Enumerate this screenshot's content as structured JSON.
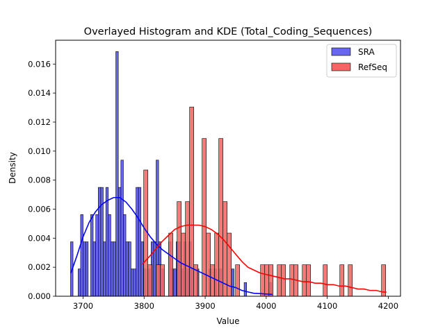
{
  "chart_data": {
    "type": "histogram",
    "title": "Overlayed Histogram and KDE (Total_Coding_Sequences)",
    "xlabel": "Value",
    "ylabel": "Density",
    "xlim": [
      3655,
      4220
    ],
    "ylim": [
      0,
      0.01764
    ],
    "grid": false,
    "legend_position": "top-right",
    "x_ticks": [
      3700,
      3800,
      3900,
      4000,
      4100,
      4200
    ],
    "y_ticks": [
      0.0,
      0.002,
      0.004,
      0.006,
      0.008,
      0.01,
      0.012,
      0.014,
      0.016
    ],
    "x_tick_labels": [
      "3700",
      "3800",
      "3900",
      "4000",
      "4100",
      "4200"
    ],
    "y_tick_labels": [
      "0.000",
      "0.002",
      "0.004",
      "0.006",
      "0.008",
      "0.010",
      "0.012",
      "0.014",
      "0.016"
    ],
    "series": [
      {
        "name": "SRA",
        "color": "#0000ff",
        "bar_color": "#6666ee",
        "bin_width": 4.12,
        "bins": [
          [
            3679.4,
            0.00375
          ],
          [
            3691.8,
            0.00188
          ],
          [
            3695.9,
            0.00563
          ],
          [
            3700.0,
            0.00375
          ],
          [
            3704.2,
            0.00375
          ],
          [
            3712.4,
            0.00563
          ],
          [
            3716.5,
            0.00375
          ],
          [
            3720.7,
            0.00563
          ],
          [
            3724.8,
            0.0075
          ],
          [
            3728.9,
            0.0075
          ],
          [
            3733.0,
            0.00375
          ],
          [
            3737.2,
            0.0075
          ],
          [
            3741.3,
            0.00563
          ],
          [
            3745.4,
            0.00375
          ],
          [
            3749.5,
            0.00375
          ],
          [
            3753.6,
            0.01686
          ],
          [
            3757.8,
            0.0075
          ],
          [
            3761.9,
            0.00938
          ],
          [
            3766.0,
            0.00563
          ],
          [
            3770.1,
            0.00375
          ],
          [
            3774.3,
            0.00375
          ],
          [
            3778.4,
            0.00188
          ],
          [
            3782.5,
            0.00188
          ],
          [
            3786.6,
            0.0075
          ],
          [
            3790.7,
            0.0075
          ],
          [
            3794.9,
            0.00375
          ],
          [
            3799.0,
            0.00188
          ],
          [
            3807.2,
            0.00188
          ],
          [
            3811.4,
            0.00375
          ],
          [
            3815.5,
            0.00375
          ],
          [
            3819.6,
            0.00938
          ],
          [
            3823.7,
            0.00375
          ],
          [
            3827.9,
            0.00188
          ],
          [
            3840.2,
            0.00375
          ],
          [
            3844.4,
            0.00188
          ],
          [
            3848.5,
            0.00188
          ],
          [
            3852.6,
            0.00375
          ],
          [
            3856.7,
            0.00375
          ],
          [
            3860.8,
            0.00188
          ],
          [
            3865.0,
            0.00375
          ],
          [
            3869.1,
            0.00188
          ],
          [
            3873.2,
            0.00375
          ],
          [
            3877.3,
            0.00188
          ],
          [
            3885.6,
            0.00188
          ],
          [
            3906.2,
            0.00188
          ],
          [
            3914.4,
            0.00188
          ],
          [
            3922.7,
            0.00188
          ],
          [
            3943.2,
            0.00188
          ],
          [
            3963.8,
            0.00094
          ],
          [
            4004.9,
            0.00094
          ]
        ],
        "kde": [
          [
            3680,
            0.0016
          ],
          [
            3690,
            0.0028
          ],
          [
            3700,
            0.0041
          ],
          [
            3710,
            0.0051
          ],
          [
            3720,
            0.0058
          ],
          [
            3730,
            0.0063
          ],
          [
            3740,
            0.0066
          ],
          [
            3750,
            0.0068
          ],
          [
            3760,
            0.0068
          ],
          [
            3770,
            0.0065
          ],
          [
            3780,
            0.006
          ],
          [
            3790,
            0.0054
          ],
          [
            3800,
            0.0047
          ],
          [
            3810,
            0.0041
          ],
          [
            3820,
            0.0036
          ],
          [
            3830,
            0.0032
          ],
          [
            3840,
            0.0029
          ],
          [
            3850,
            0.0026
          ],
          [
            3860,
            0.0023
          ],
          [
            3870,
            0.0021
          ],
          [
            3880,
            0.0019
          ],
          [
            3890,
            0.0017
          ],
          [
            3900,
            0.0015
          ],
          [
            3910,
            0.0013
          ],
          [
            3920,
            0.0011
          ],
          [
            3930,
            0.0009
          ],
          [
            3940,
            0.0007
          ],
          [
            3950,
            0.0006
          ],
          [
            3960,
            0.0004
          ],
          [
            3970,
            0.0003
          ],
          [
            3980,
            0.0002
          ],
          [
            3990,
            0.00018
          ],
          [
            4000,
            0.00015
          ],
          [
            4010,
            0.00013
          ]
        ]
      },
      {
        "name": "RefSeq",
        "color": "#ff0000",
        "bar_color": "#f26666",
        "bin_width": 6.84,
        "bins": [
          [
            3799.3,
            0.0087
          ],
          [
            3806.1,
            0.00217
          ],
          [
            3819.8,
            0.00217
          ],
          [
            3826.6,
            0.00217
          ],
          [
            3840.3,
            0.00435
          ],
          [
            3854.0,
            0.00652
          ],
          [
            3860.8,
            0.00435
          ],
          [
            3867.6,
            0.00652
          ],
          [
            3874.5,
            0.01304
          ],
          [
            3881.3,
            0.00217
          ],
          [
            3895.0,
            0.01087
          ],
          [
            3901.8,
            0.00435
          ],
          [
            3908.6,
            0.00217
          ],
          [
            3915.5,
            0.00435
          ],
          [
            3922.3,
            0.01087
          ],
          [
            3929.2,
            0.00652
          ],
          [
            3936.0,
            0.00435
          ],
          [
            3949.7,
            0.00217
          ],
          [
            3990.7,
            0.00217
          ],
          [
            3997.6,
            0.00217
          ],
          [
            4004.4,
            0.00217
          ],
          [
            4018.1,
            0.00217
          ],
          [
            4024.9,
            0.00217
          ],
          [
            4038.6,
            0.00217
          ],
          [
            4045.4,
            0.00217
          ],
          [
            4059.1,
            0.00217
          ],
          [
            4065.9,
            0.00217
          ],
          [
            4093.3,
            0.00217
          ],
          [
            4120.6,
            0.00217
          ],
          [
            4134.3,
            0.00217
          ],
          [
            4188.9,
            0.00217
          ]
        ],
        "kde": [
          [
            3797,
            0.0022
          ],
          [
            3810,
            0.0028
          ],
          [
            3820,
            0.0033
          ],
          [
            3830,
            0.0038
          ],
          [
            3840,
            0.0042
          ],
          [
            3850,
            0.0046
          ],
          [
            3860,
            0.0048
          ],
          [
            3870,
            0.0049
          ],
          [
            3880,
            0.0049
          ],
          [
            3890,
            0.0049
          ],
          [
            3900,
            0.0048
          ],
          [
            3910,
            0.0046
          ],
          [
            3920,
            0.0043
          ],
          [
            3930,
            0.0039
          ],
          [
            3940,
            0.0034
          ],
          [
            3950,
            0.0029
          ],
          [
            3960,
            0.0024
          ],
          [
            3970,
            0.002
          ],
          [
            3980,
            0.0018
          ],
          [
            3990,
            0.0016
          ],
          [
            4000,
            0.0015
          ],
          [
            4010,
            0.0014
          ],
          [
            4020,
            0.0013
          ],
          [
            4030,
            0.0012
          ],
          [
            4040,
            0.0012
          ],
          [
            4050,
            0.0011
          ],
          [
            4060,
            0.001
          ],
          [
            4070,
            0.001
          ],
          [
            4080,
            0.0009
          ],
          [
            4090,
            0.0009
          ],
          [
            4100,
            0.0008
          ],
          [
            4110,
            0.0008
          ],
          [
            4120,
            0.0007
          ],
          [
            4130,
            0.0007
          ],
          [
            4140,
            0.0006
          ],
          [
            4150,
            0.0005
          ],
          [
            4160,
            0.0005
          ],
          [
            4170,
            0.0004
          ],
          [
            4180,
            0.0004
          ],
          [
            4190,
            0.0003
          ],
          [
            4197,
            0.00028
          ]
        ]
      }
    ]
  }
}
